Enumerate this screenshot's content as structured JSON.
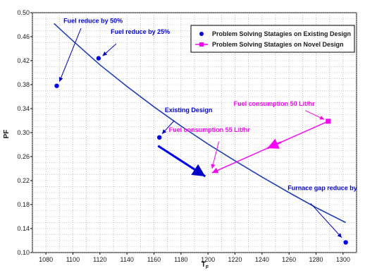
{
  "chart_data": {
    "type": "scatter",
    "xlabel": "T",
    "xlabel_sub": "F",
    "ylabel": "PF",
    "xlim": [
      1070,
      1310
    ],
    "ylim": [
      0.1,
      0.5
    ],
    "xticks": [
      1080,
      1100,
      1120,
      1140,
      1160,
      1180,
      1200,
      1220,
      1240,
      1260,
      1280,
      1300
    ],
    "yticks": [
      0.1,
      0.14,
      0.18,
      0.22,
      0.26,
      0.3,
      0.34,
      0.38,
      0.42,
      0.46,
      0.5
    ],
    "grid": true,
    "legend_position": "top-right",
    "curve": {
      "x": [
        1086,
        1100,
        1120,
        1140,
        1160,
        1180,
        1200,
        1220,
        1240,
        1260,
        1280,
        1302
      ],
      "y": [
        0.482,
        0.453,
        0.413,
        0.377,
        0.343,
        0.311,
        0.281,
        0.253,
        0.226,
        0.2,
        0.175,
        0.15
      ]
    },
    "series": [
      {
        "name": "Problem Solving Statagies on Existing Design",
        "color": "#0000ff",
        "marker": "circle",
        "points": [
          {
            "x": 1088,
            "y": 0.378
          },
          {
            "x": 1119,
            "y": 0.424
          },
          {
            "x": 1164,
            "y": 0.292
          },
          {
            "x": 1302,
            "y": 0.117
          }
        ]
      },
      {
        "name": "Problem Solving Statagies on Novel Design",
        "color": "#ff00ff",
        "marker": "square",
        "points": [
          {
            "x": 1289,
            "y": 0.319
          }
        ]
      }
    ],
    "annotations": [
      {
        "text": "Fuel reduce by 50%",
        "color": "#0000ff",
        "label_at": [
          1093,
          0.483
        ],
        "arrow_from": [
          1106,
          0.474
        ],
        "arrow_to": [
          1090,
          0.385
        ]
      },
      {
        "text": "Fuel reduce by 25%",
        "color": "#0000ff",
        "label_at": [
          1128,
          0.465
        ],
        "arrow_from": [
          1132,
          0.448
        ],
        "arrow_to": [
          1122,
          0.428
        ]
      },
      {
        "text": "Existing Design",
        "color": "#0000ff",
        "label_at": [
          1168,
          0.334
        ],
        "arrow_from": [
          1175,
          0.32
        ],
        "arrow_to": [
          1166,
          0.298
        ]
      },
      {
        "text": "Fuel consumption 50 Lit/hr",
        "color": "#ff00ff",
        "label_at": [
          1219,
          0.345
        ],
        "arrow_from": [
          1272,
          0.337
        ],
        "arrow_to": [
          1286,
          0.322
        ]
      },
      {
        "text": "Fuel consumption 55 Lit/hr",
        "color": "#ff00ff",
        "label_at": [
          1171,
          0.301
        ],
        "arrow_from": [
          1208,
          0.285
        ],
        "arrow_to": [
          1203,
          0.24
        ]
      },
      {
        "text": "Furnace gap reduce by",
        "color": "#0000ff",
        "label_at": [
          1259,
          0.204
        ],
        "arrow_from": [
          1276,
          0.182
        ],
        "arrow_to": [
          1299,
          0.125
        ]
      }
    ],
    "flow_arrows": [
      {
        "color": "#ff00ff",
        "from": [
          1289,
          0.319
        ],
        "to": [
          1203,
          0.233
        ]
      },
      {
        "color": "#0000ff",
        "from": [
          1163,
          0.278
        ],
        "to": [
          1198,
          0.227
        ]
      }
    ]
  }
}
